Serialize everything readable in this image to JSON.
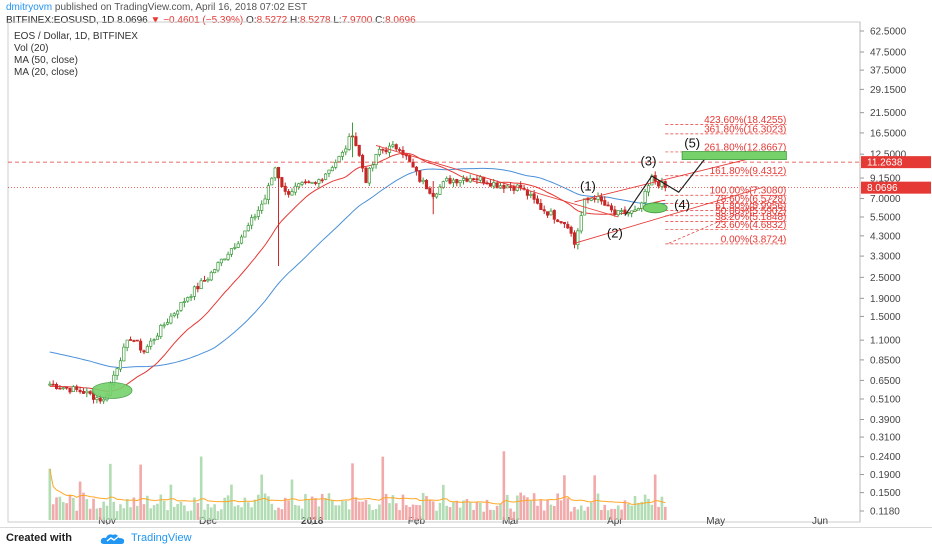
{
  "header": {
    "author": "dmitryovm",
    "published": "published on TradingView.com, April 16, 2018 07:02 EST",
    "symbol": "BITFINEX:EOSUSD, 1D",
    "last": "8.0696",
    "change": "−0.4601 (−5.39%)",
    "open_label": "O:",
    "open": "8.5272",
    "high_label": "H:",
    "high": "8.5278",
    "low_label": "L:",
    "low": "7.9700",
    "close_label": "C:",
    "close": "8.0696"
  },
  "legend": [
    "EOS / Dollar, 1D, BITFINEX",
    "Vol (20)",
    "MA (50, close)",
    "MA (20, close)"
  ],
  "footer": {
    "created_with": "Created with",
    "brand": "TradingView"
  },
  "colors": {
    "up": "#3c9a3c",
    "down": "#c62828",
    "ma20": "#e53935",
    "ma50": "#4a90d9",
    "vol_up": "#a5d6a7",
    "vol_down": "#ef9a9a",
    "vol_ma": "#ffa726",
    "fib": "#e53935",
    "wave": "#222222",
    "highlight": "#76d16b",
    "price_badge": "#e53935"
  },
  "chart_data": {
    "type": "candlestick",
    "y_scale": "log",
    "y_ticks": [
      "62.5000",
      "47.5000",
      "37.5000",
      "29.1500",
      "21.5000",
      "16.5000",
      "12.5000",
      "9.1500",
      "7.0000",
      "5.5000",
      "4.3000",
      "3.3000",
      "2.5000",
      "1.9000",
      "1.5000",
      "1.1000",
      "0.8500",
      "0.6500",
      "0.5100",
      "0.3900",
      "0.3100",
      "0.2400",
      "0.1900",
      "0.1500",
      "0.1180"
    ],
    "x_ticks": [
      "Nov",
      "Dec",
      "2018",
      "Feb",
      "Mar",
      "Apr",
      "May",
      "Jun"
    ],
    "current_price_badges": [
      "11.2638",
      "8.0696"
    ],
    "fib_levels": [
      {
        "label": "423.60%(18.4255)",
        "price": 18.4255
      },
      {
        "label": "361.80%(16.3023)",
        "price": 16.3023
      },
      {
        "label": "261.80%(12.8667)",
        "price": 12.8667
      },
      {
        "label": "161.80%(9.4312)",
        "price": 9.4312
      },
      {
        "label": "100.00%(7.3080)",
        "price": 7.308
      },
      {
        "label": "78.60%(6.5728)",
        "price": 6.5728
      },
      {
        "label": "61.80%(5.9956)",
        "price": 5.9956
      },
      {
        "label": "50.00%(5.5902)",
        "price": 5.5902
      },
      {
        "label": "38.20%(5.1848)",
        "price": 5.1848
      },
      {
        "label": "23.60%(4.6832)",
        "price": 4.6832
      },
      {
        "label": "0.00%(3.8724)",
        "price": 3.8724
      }
    ],
    "wave_labels": [
      "(1)",
      "(2)",
      "(3)",
      "(4)",
      "(5)"
    ],
    "price_path": [
      {
        "date": "2017-10-15",
        "close": 0.62
      },
      {
        "date": "2017-10-25",
        "close": 0.56
      },
      {
        "date": "2017-10-31",
        "close": 0.5
      },
      {
        "date": "2017-11-02",
        "close": 0.62
      },
      {
        "date": "2017-11-05",
        "close": 0.88
      },
      {
        "date": "2017-11-08",
        "close": 1.15
      },
      {
        "date": "2017-11-12",
        "close": 0.95
      },
      {
        "date": "2017-11-18",
        "close": 1.35
      },
      {
        "date": "2017-11-25",
        "close": 1.95
      },
      {
        "date": "2017-12-01",
        "close": 2.5
      },
      {
        "date": "2017-12-06",
        "close": 3.3
      },
      {
        "date": "2017-12-12",
        "close": 4.5
      },
      {
        "date": "2017-12-18",
        "close": 7.0
      },
      {
        "date": "2017-12-21",
        "close": 10.5
      },
      {
        "date": "2017-12-24",
        "close": 7.5
      },
      {
        "date": "2017-12-28",
        "close": 8.2
      },
      {
        "date": "2018-01-02",
        "close": 8.5
      },
      {
        "date": "2018-01-06",
        "close": 10.3
      },
      {
        "date": "2018-01-10",
        "close": 12.5
      },
      {
        "date": "2018-01-13",
        "close": 16.5
      },
      {
        "date": "2018-01-17",
        "close": 9.0
      },
      {
        "date": "2018-01-21",
        "close": 13.2
      },
      {
        "date": "2018-01-27",
        "close": 13.8
      },
      {
        "date": "2018-02-02",
        "close": 9.0
      },
      {
        "date": "2018-02-06",
        "close": 7.5
      },
      {
        "date": "2018-02-10",
        "close": 8.8
      },
      {
        "date": "2018-02-18",
        "close": 9.3
      },
      {
        "date": "2018-02-25",
        "close": 8.4
      },
      {
        "date": "2018-03-04",
        "close": 8.1
      },
      {
        "date": "2018-03-10",
        "close": 6.2
      },
      {
        "date": "2018-03-18",
        "close": 5.0
      },
      {
        "date": "2018-03-20",
        "close": 3.87
      },
      {
        "date": "2018-03-23",
        "close": 6.7
      },
      {
        "date": "2018-03-26",
        "close": 7.2
      },
      {
        "date": "2018-04-01",
        "close": 5.7
      },
      {
        "date": "2018-04-08",
        "close": 5.9
      },
      {
        "date": "2018-04-12",
        "close": 9.1
      },
      {
        "date": "2018-04-14",
        "close": 8.6
      },
      {
        "date": "2018-04-16",
        "close": 8.07
      }
    ]
  }
}
